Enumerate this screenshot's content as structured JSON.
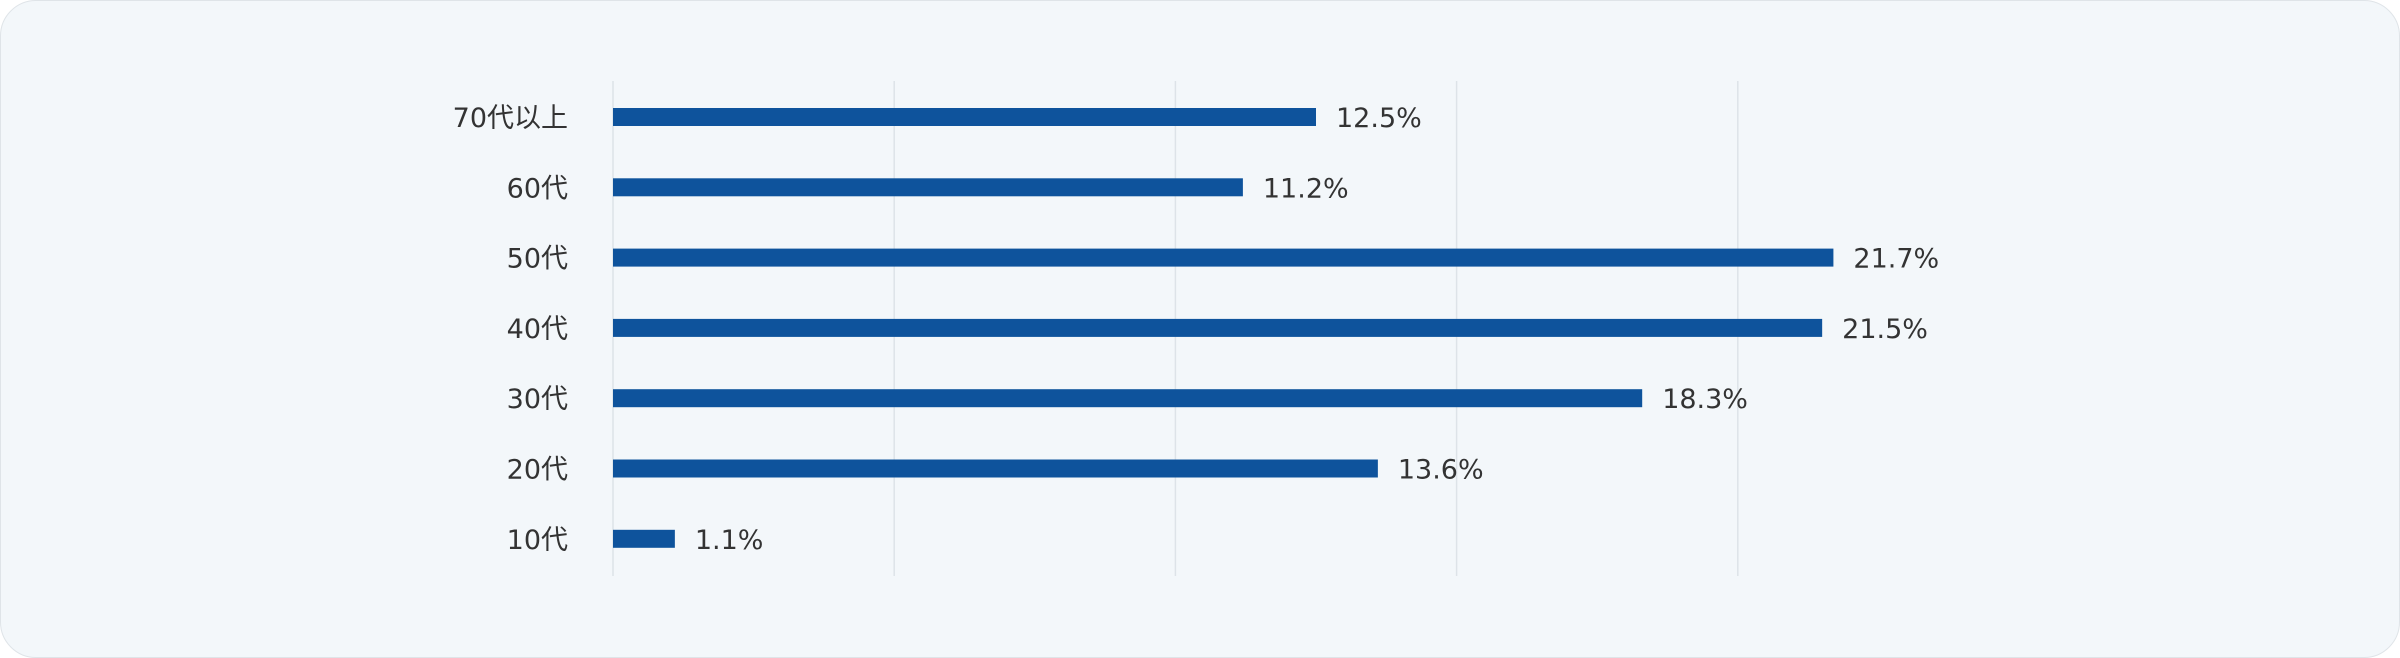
{
  "chart_data": {
    "type": "bar",
    "orientation": "horizontal",
    "categories": [
      "70代以上",
      "60代",
      "50代",
      "40代",
      "30代",
      "20代",
      "10代"
    ],
    "values": [
      12.5,
      11.2,
      21.7,
      21.5,
      18.3,
      13.6,
      1.1
    ],
    "value_labels": [
      "12.5%",
      "11.2%",
      "21.7%",
      "21.5%",
      "18.3%",
      "13.6%",
      "1.1%"
    ],
    "unit": "%",
    "xlim": [
      0,
      25
    ],
    "grid": true,
    "legend": "none",
    "bar_color": "#0e539c",
    "grid_color": "#dde3e8"
  }
}
